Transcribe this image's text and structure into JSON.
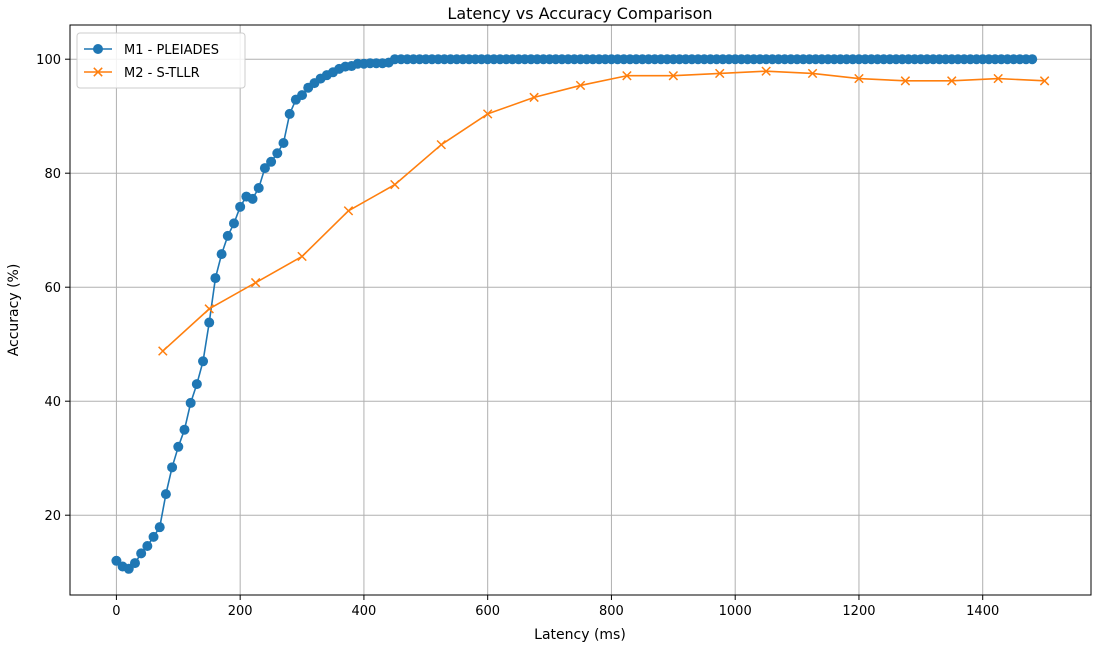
{
  "chart_data": {
    "type": "line",
    "title": "Latency vs Accuracy Comparison",
    "xlabel": "Latency (ms)",
    "ylabel": "Accuracy (%)",
    "xlim": [
      -75,
      1575
    ],
    "ylim": [
      6,
      106
    ],
    "xticks": [
      0,
      200,
      400,
      600,
      800,
      1000,
      1200,
      1400
    ],
    "yticks": [
      20,
      40,
      60,
      80,
      100
    ],
    "grid": true,
    "legend_position": "upper-left",
    "series": [
      {
        "name": "M1 - PLEIADES",
        "color": "#1f77b4",
        "marker": "circle",
        "x": [
          0,
          10,
          20,
          30,
          40,
          50,
          60,
          70,
          80,
          90,
          100,
          110,
          120,
          130,
          140,
          150,
          160,
          170,
          180,
          190,
          200,
          210,
          220,
          230,
          240,
          250,
          260,
          270,
          280,
          290,
          300,
          310,
          320,
          330,
          340,
          350,
          360,
          370,
          380,
          390,
          400,
          410,
          420,
          430,
          440,
          450,
          460,
          470,
          480,
          490,
          500,
          510,
          520,
          530,
          540,
          550,
          560,
          570,
          580,
          590,
          600,
          610,
          620,
          630,
          640,
          650,
          660,
          670,
          680,
          690,
          700,
          710,
          720,
          730,
          740,
          750,
          760,
          770,
          780,
          790,
          800,
          810,
          820,
          830,
          840,
          850,
          860,
          870,
          880,
          890,
          900,
          910,
          920,
          930,
          940,
          950,
          960,
          970,
          980,
          990,
          1000,
          1010,
          1020,
          1030,
          1040,
          1050,
          1060,
          1070,
          1080,
          1090,
          1100,
          1110,
          1120,
          1130,
          1140,
          1150,
          1160,
          1170,
          1180,
          1190,
          1200,
          1210,
          1220,
          1230,
          1240,
          1250,
          1260,
          1270,
          1280,
          1290,
          1300,
          1310,
          1320,
          1330,
          1340,
          1350,
          1360,
          1370,
          1380,
          1390,
          1400,
          1410,
          1420,
          1430,
          1440,
          1450,
          1460,
          1470,
          1480
        ],
        "y": [
          12.0,
          11.0,
          10.6,
          11.6,
          13.3,
          14.6,
          16.2,
          17.9,
          23.7,
          28.4,
          32.0,
          35.0,
          39.7,
          43.0,
          47.0,
          53.8,
          61.6,
          65.8,
          69.0,
          71.2,
          74.1,
          75.9,
          75.5,
          77.4,
          80.9,
          82.0,
          83.5,
          85.3,
          90.4,
          92.9,
          93.7,
          95.0,
          95.8,
          96.6,
          97.2,
          97.7,
          98.3,
          98.7,
          98.8,
          99.2,
          99.2,
          99.3,
          99.3,
          99.3,
          99.4,
          100,
          100,
          100,
          100,
          100,
          100,
          100,
          100,
          100,
          100,
          100,
          100,
          100,
          100,
          100,
          100,
          100,
          100,
          100,
          100,
          100,
          100,
          100,
          100,
          100,
          100,
          100,
          100,
          100,
          100,
          100,
          100,
          100,
          100,
          100,
          100,
          100,
          100,
          100,
          100,
          100,
          100,
          100,
          100,
          100,
          100,
          100,
          100,
          100,
          100,
          100,
          100,
          100,
          100,
          100,
          100,
          100,
          100,
          100,
          100,
          100,
          100,
          100,
          100,
          100,
          100,
          100,
          100,
          100,
          100,
          100,
          100,
          100,
          100,
          100,
          100,
          100,
          100,
          100,
          100,
          100,
          100,
          100,
          100,
          100,
          100,
          100,
          100,
          100,
          100,
          100,
          100,
          100,
          100,
          100,
          100,
          100,
          100,
          100,
          100,
          100,
          100,
          100,
          100
        ]
      },
      {
        "name": "M2 - S-TLLR",
        "color": "#ff7f0e",
        "marker": "x",
        "x": [
          75,
          150,
          225,
          300,
          375,
          450,
          525,
          600,
          675,
          750,
          825,
          900,
          975,
          1050,
          1125,
          1200,
          1275,
          1350,
          1425,
          1500
        ],
        "y": [
          48.8,
          56.2,
          60.8,
          65.4,
          73.4,
          78.0,
          85.0,
          90.4,
          93.3,
          95.4,
          97.1,
          97.1,
          97.5,
          97.9,
          97.5,
          96.6,
          96.2,
          96.2,
          96.6,
          96.2
        ]
      }
    ]
  }
}
